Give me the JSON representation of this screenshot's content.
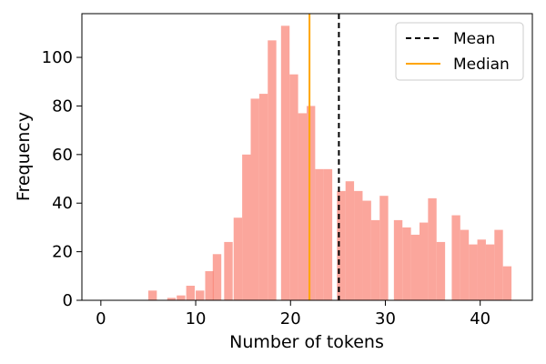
{
  "chart_data": {
    "type": "bar",
    "title": "",
    "xlabel": "Number of tokens",
    "ylabel": "Frequency",
    "xlim": [
      -2,
      45.5
    ],
    "ylim": [
      0,
      118
    ],
    "xticks": [
      0,
      10,
      20,
      30,
      40
    ],
    "yticks": [
      0,
      20,
      40,
      60,
      80,
      100
    ],
    "bin_width": 0.9,
    "grid": false,
    "legend_position": "top-right",
    "colors": {
      "bars": "#fa8072",
      "mean": "#000000",
      "median": "#ffa500"
    },
    "bins": [
      {
        "x": 5,
        "value": 4
      },
      {
        "x": 7,
        "value": 1
      },
      {
        "x": 8,
        "value": 2
      },
      {
        "x": 9,
        "value": 6
      },
      {
        "x": 10,
        "value": 4
      },
      {
        "x": 11,
        "value": 12
      },
      {
        "x": 11.8,
        "value": 19
      },
      {
        "x": 13,
        "value": 24
      },
      {
        "x": 14,
        "value": 34
      },
      {
        "x": 14.9,
        "value": 60
      },
      {
        "x": 15.8,
        "value": 83
      },
      {
        "x": 16.7,
        "value": 85
      },
      {
        "x": 17.6,
        "value": 107
      },
      {
        "x": 19,
        "value": 113
      },
      {
        "x": 19.9,
        "value": 93
      },
      {
        "x": 20.8,
        "value": 77
      },
      {
        "x": 21.7,
        "value": 80
      },
      {
        "x": 22.6,
        "value": 54
      },
      {
        "x": 23.5,
        "value": 54
      },
      {
        "x": 24.9,
        "value": 45
      },
      {
        "x": 25.8,
        "value": 49
      },
      {
        "x": 26.7,
        "value": 45
      },
      {
        "x": 27.6,
        "value": 41
      },
      {
        "x": 28.5,
        "value": 33
      },
      {
        "x": 29.4,
        "value": 43
      },
      {
        "x": 30.9,
        "value": 33
      },
      {
        "x": 31.8,
        "value": 30
      },
      {
        "x": 32.7,
        "value": 27
      },
      {
        "x": 33.6,
        "value": 32
      },
      {
        "x": 34.5,
        "value": 42
      },
      {
        "x": 35.4,
        "value": 24
      },
      {
        "x": 37,
        "value": 35
      },
      {
        "x": 37.9,
        "value": 29
      },
      {
        "x": 38.8,
        "value": 23
      },
      {
        "x": 39.7,
        "value": 25
      },
      {
        "x": 40.6,
        "value": 23
      },
      {
        "x": 41.5,
        "value": 29
      },
      {
        "x": 42.4,
        "value": 14
      }
    ],
    "lines": {
      "mean": 25.1,
      "median": 22
    },
    "legend": [
      {
        "key": "mean",
        "label": "Mean",
        "style": "dashed"
      },
      {
        "key": "median",
        "label": "Median",
        "style": "solid"
      }
    ]
  }
}
